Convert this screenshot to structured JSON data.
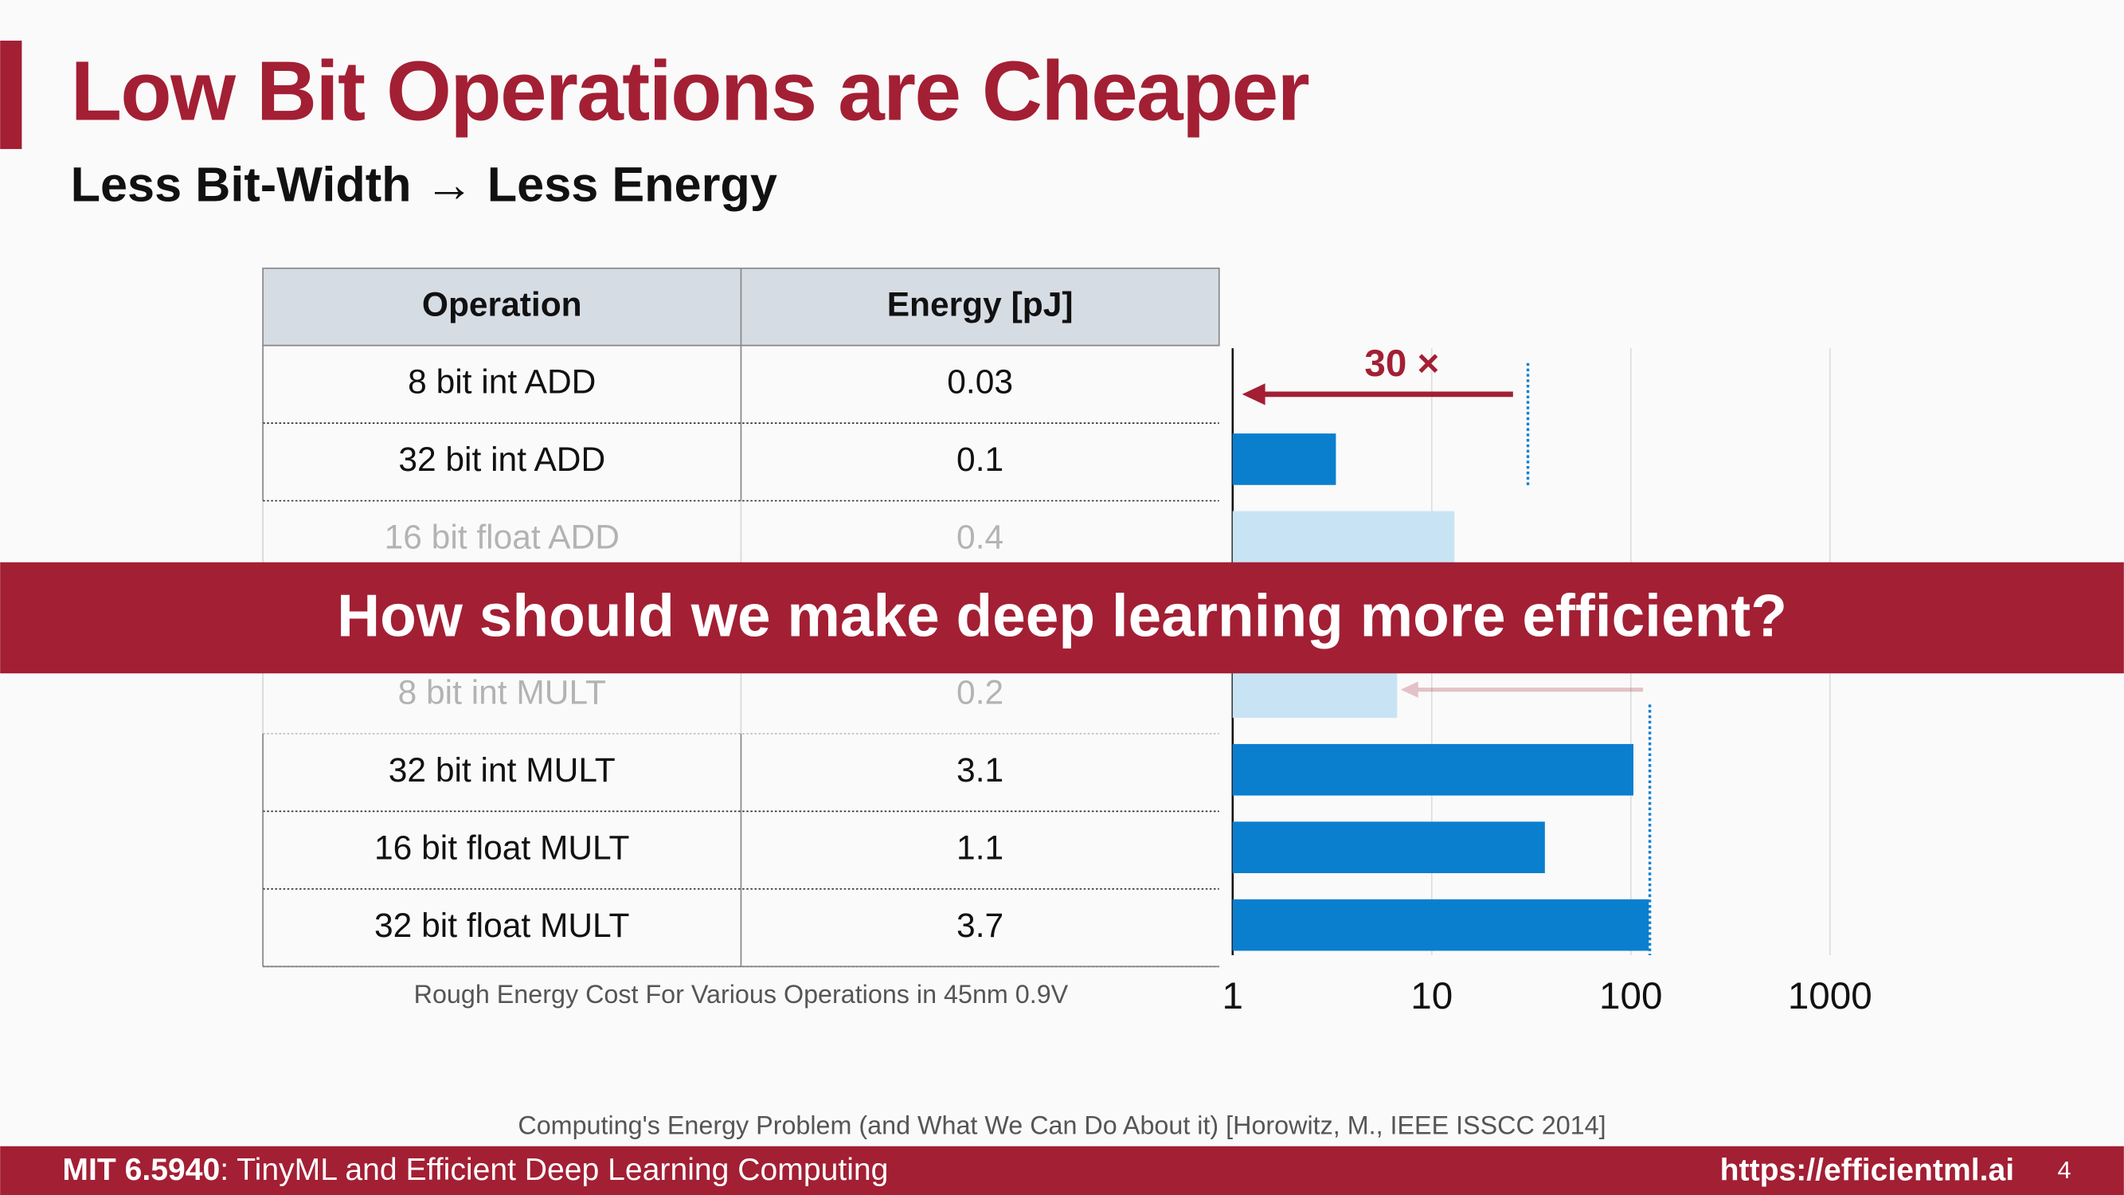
{
  "header": {
    "title": "Low Bit Operations are Cheaper",
    "subtitle": "Less Bit-Width → Less Energy"
  },
  "table": {
    "columns": [
      "Operation",
      "Energy [pJ]"
    ],
    "rows": [
      [
        "8 bit int ADD",
        "0.03"
      ],
      [
        "32 bit int ADD",
        "0.1"
      ],
      [
        "16 bit float ADD",
        "0.4"
      ],
      [
        "8 bit int MULT",
        "0.2"
      ],
      [
        "32 bit int MULT",
        "3.1"
      ],
      [
        "16 bit float MULT",
        "1.1"
      ],
      [
        "32 bit float MULT",
        "3.7"
      ]
    ],
    "caption": "Rough Energy Cost For Various Operations in 45nm 0.9V"
  },
  "chart_data": {
    "type": "bar",
    "orientation": "horizontal",
    "log_scale": true,
    "values": [
      1,
      3.3,
      13,
      6.7,
      103,
      37,
      123
    ],
    "colors": [
      "#0a7fce",
      "#0a7fce",
      "#c8e4f4",
      "#c8e4f4",
      "#0a7fce",
      "#0a7fce",
      "#0a7fce"
    ],
    "xlim": [
      1,
      1000
    ],
    "xticks": [
      1,
      10,
      100,
      1000
    ],
    "grid": true,
    "annotation": "30 ×"
  },
  "banner": "How should we make deep learning more efficient?",
  "reference": "Computing's Energy Problem (and What We Can Do About it) [Horowitz, M., IEEE ISSCC 2014]",
  "footer": {
    "course_code": "MIT 6.5940",
    "course_name": ": TinyML and Efficient Deep Learning Computing",
    "url": "https://efficientml.ai",
    "page": "4"
  }
}
